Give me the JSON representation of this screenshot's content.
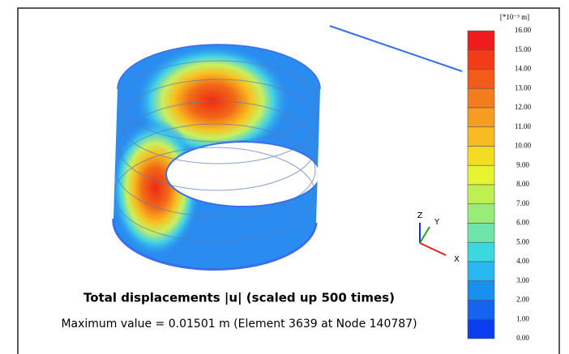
{
  "plot": {
    "title": "Total displacements |u| (scaled up 500 times)",
    "subtitle": "Maximum value = 0.01501 m (Element 3639 at Node 140787)",
    "axes": {
      "x": "X",
      "y": "Y",
      "z": "Z"
    }
  },
  "legend": {
    "unit": "[*10⁻³ m]",
    "labels": [
      "16.00",
      "15.00",
      "14.00",
      "13.00",
      "12.00",
      "11.00",
      "10.00",
      "9.00",
      "8.00",
      "7.00",
      "6.00",
      "5.00",
      "4.00",
      "3.00",
      "2.00",
      "1.00",
      "0.00"
    ],
    "colors": [
      "#ee1c1c",
      "#f23c18",
      "#f45a18",
      "#f47c1c",
      "#f69c20",
      "#f8bc20",
      "#f4dc20",
      "#e8f430",
      "#c0f050",
      "#98ec78",
      "#70e4a8",
      "#3cd8e0",
      "#28b8f0",
      "#1890f0",
      "#1464f0",
      "#0c3cf0"
    ]
  }
}
